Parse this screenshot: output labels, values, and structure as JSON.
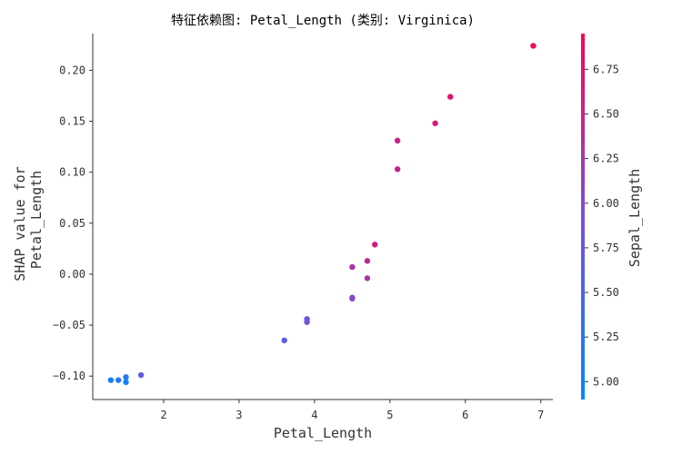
{
  "chart_data": {
    "type": "scatter",
    "title": "特征依赖图: Petal_Length (类别: Virginica)",
    "xlabel": "Petal_Length",
    "ylabel_lines": [
      "SHAP value for",
      "Petal_Length"
    ],
    "xlim": [
      1.06,
      7.16
    ],
    "ylim": [
      -0.123,
      0.236
    ],
    "x_ticks": [
      2,
      3,
      4,
      5,
      6,
      7
    ],
    "y_ticks": [
      -0.1,
      -0.05,
      0.0,
      0.05,
      0.1,
      0.15,
      0.2
    ],
    "y_tick_labels": [
      "−0.10",
      "−0.05",
      "0.00",
      "0.05",
      "0.10",
      "0.15",
      "0.20"
    ],
    "colorbar": {
      "label": "Sepal_Length",
      "range": [
        4.9,
        6.95
      ],
      "ticks": [
        5.0,
        5.25,
        5.5,
        5.75,
        6.0,
        6.25,
        6.5,
        6.75
      ],
      "tick_labels": [
        "5.00",
        "5.25",
        "5.50",
        "5.75",
        "6.00",
        "6.25",
        "6.50",
        "6.75"
      ],
      "colors": [
        "#008afb",
        "#7d4fd9",
        "#ff0051"
      ]
    },
    "points": [
      {
        "x": 1.3,
        "y": -0.104,
        "c": 5.1
      },
      {
        "x": 1.4,
        "y": -0.104,
        "c": 5.2
      },
      {
        "x": 1.5,
        "y": -0.101,
        "c": 5.2
      },
      {
        "x": 1.5,
        "y": -0.106,
        "c": 5.0
      },
      {
        "x": 1.7,
        "y": -0.099,
        "c": 5.7
      },
      {
        "x": 3.6,
        "y": -0.065,
        "c": 5.65
      },
      {
        "x": 3.9,
        "y": -0.044,
        "c": 5.75
      },
      {
        "x": 3.9,
        "y": -0.047,
        "c": 5.85
      },
      {
        "x": 4.5,
        "y": -0.023,
        "c": 5.95
      },
      {
        "x": 4.5,
        "y": -0.024,
        "c": 6.0
      },
      {
        "x": 4.5,
        "y": 0.007,
        "c": 6.3
      },
      {
        "x": 4.7,
        "y": 0.013,
        "c": 6.45
      },
      {
        "x": 4.7,
        "y": -0.004,
        "c": 6.25
      },
      {
        "x": 4.8,
        "y": 0.029,
        "c": 6.6
      },
      {
        "x": 5.1,
        "y": 0.103,
        "c": 6.5
      },
      {
        "x": 5.1,
        "y": 0.131,
        "c": 6.55
      },
      {
        "x": 5.6,
        "y": 0.148,
        "c": 6.65
      },
      {
        "x": 5.8,
        "y": 0.174,
        "c": 6.75
      },
      {
        "x": 6.9,
        "y": 0.224,
        "c": 6.9
      }
    ]
  }
}
